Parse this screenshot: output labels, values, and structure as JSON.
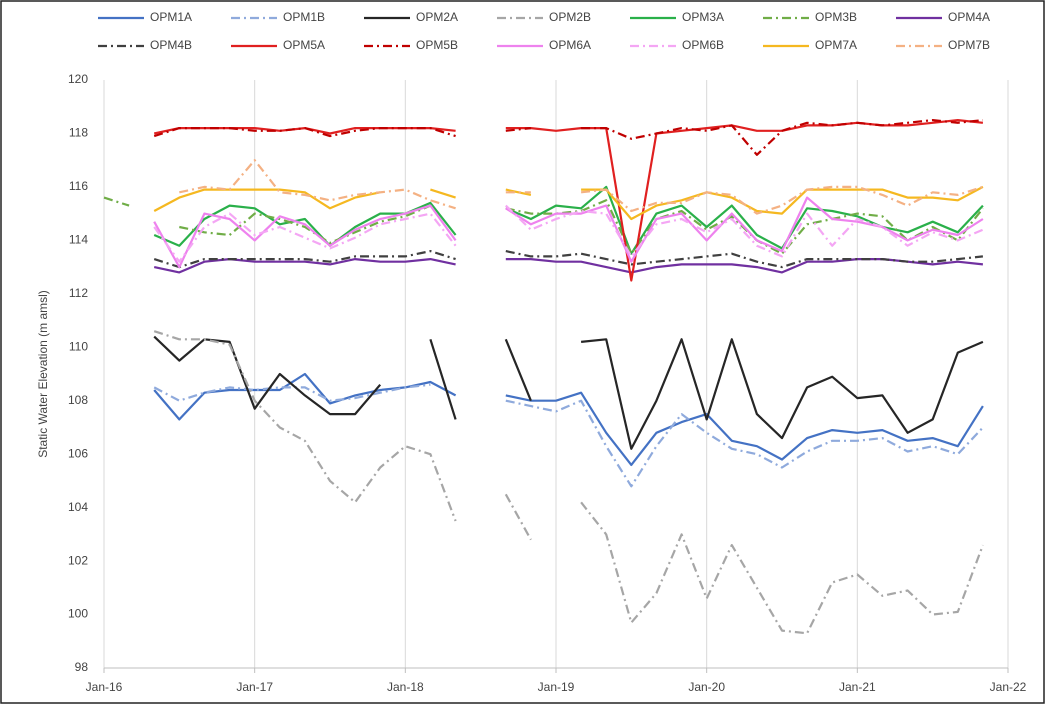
{
  "chart_data": {
    "type": "line",
    "y_label": "Static Water Elevation (m amsl)",
    "x": [
      "2016-01",
      "2016-03",
      "2016-05",
      "2016-07",
      "2016-09",
      "2016-11",
      "2017-01",
      "2017-03",
      "2017-05",
      "2017-07",
      "2017-09",
      "2017-11",
      "2018-01",
      "2018-03",
      "2018-05",
      "2018-07",
      "2018-09",
      "2018-11",
      "2019-01",
      "2019-03",
      "2019-05",
      "2019-07",
      "2019-09",
      "2019-11",
      "2020-01",
      "2020-03",
      "2020-05",
      "2020-07",
      "2020-09",
      "2020-11",
      "2021-01",
      "2021-03",
      "2021-05",
      "2021-07",
      "2021-09",
      "2021-11"
    ],
    "xlim": [
      "2016-01",
      "2022-01"
    ],
    "xticks": [
      {
        "value": "2016-01",
        "label": "Jan-16"
      },
      {
        "value": "2017-01",
        "label": "Jan-17"
      },
      {
        "value": "2018-01",
        "label": "Jan-18"
      },
      {
        "value": "2019-01",
        "label": "Jan-19"
      },
      {
        "value": "2020-01",
        "label": "Jan-20"
      },
      {
        "value": "2021-01",
        "label": "Jan-21"
      },
      {
        "value": "2022-01",
        "label": "Jan-22"
      }
    ],
    "ylim": [
      98,
      120
    ],
    "yticks": [
      98,
      100,
      102,
      104,
      106,
      108,
      110,
      112,
      114,
      116,
      118,
      120
    ],
    "xgrid": true,
    "legend": "top",
    "series": [
      {
        "name": "OPM1A",
        "color": "#4472c4",
        "style": "solid",
        "values": [
          null,
          null,
          108.4,
          107.3,
          108.3,
          108.4,
          108.4,
          108.4,
          109.0,
          107.9,
          108.2,
          108.4,
          108.5,
          108.7,
          108.2,
          null,
          108.2,
          108.0,
          108.0,
          108.3,
          106.8,
          105.6,
          106.8,
          107.2,
          107.5,
          106.5,
          106.3,
          105.8,
          106.6,
          106.9,
          106.8,
          106.9,
          106.5,
          106.6,
          106.3,
          107.8
        ]
      },
      {
        "name": "OPM1B",
        "color": "#8faadc",
        "style": "dashdot",
        "values": [
          108.5,
          null,
          108.5,
          108.0,
          108.3,
          108.5,
          108.4,
          108.5,
          108.5,
          108.0,
          108.1,
          108.3,
          108.5,
          108.6,
          null,
          null,
          108.0,
          107.8,
          107.6,
          108.0,
          106.3,
          104.8,
          106.3,
          107.5,
          106.8,
          106.2,
          106.0,
          105.5,
          106.1,
          106.5,
          106.5,
          106.6,
          106.1,
          106.3,
          106.0,
          107.0
        ]
      },
      {
        "name": "OPM2A",
        "color": "#262626",
        "style": "solid",
        "values": [
          110.7,
          null,
          110.4,
          109.5,
          110.3,
          110.2,
          107.7,
          109.0,
          108.2,
          107.5,
          107.5,
          108.6,
          null,
          110.3,
          107.3,
          null,
          110.3,
          108.0,
          null,
          110.2,
          110.3,
          106.2,
          108.0,
          110.3,
          107.3,
          110.3,
          107.5,
          106.6,
          108.5,
          108.9,
          108.1,
          108.2,
          106.8,
          107.3,
          109.8,
          110.2
        ]
      },
      {
        "name": "OPM2B",
        "color": "#a6a6a6",
        "style": "dashdot",
        "values": [
          110.8,
          null,
          110.6,
          110.3,
          110.3,
          110.1,
          108.0,
          107.0,
          106.5,
          105.0,
          104.2,
          105.5,
          106.3,
          106.0,
          103.5,
          null,
          104.5,
          102.8,
          null,
          104.2,
          103.0,
          99.7,
          100.8,
          103.0,
          100.6,
          102.6,
          101.0,
          99.4,
          99.3,
          101.2,
          101.5,
          100.7,
          100.9,
          100.0,
          100.1,
          102.6
        ]
      },
      {
        "name": "OPM3A",
        "color": "#2ab04a",
        "style": "solid",
        "values": [
          null,
          null,
          114.2,
          113.8,
          114.8,
          115.3,
          115.2,
          114.6,
          114.8,
          113.8,
          114.5,
          115.0,
          115.0,
          115.4,
          114.2,
          null,
          115.2,
          114.8,
          115.3,
          115.2,
          116.0,
          113.5,
          115.0,
          115.3,
          114.5,
          115.3,
          114.2,
          113.7,
          115.2,
          115.1,
          114.9,
          114.5,
          114.3,
          114.7,
          114.3,
          115.3
        ]
      },
      {
        "name": "OPM3B",
        "color": "#70ad47",
        "style": "dashdot",
        "values": [
          115.6,
          115.3,
          null,
          114.5,
          114.3,
          114.2,
          115.0,
          114.8,
          114.5,
          113.9,
          114.3,
          114.7,
          114.9,
          115.3,
          null,
          null,
          115.2,
          115.0,
          115.0,
          115.1,
          115.5,
          113.5,
          114.8,
          115.1,
          114.4,
          114.9,
          114.0,
          113.5,
          114.6,
          114.8,
          115.0,
          114.9,
          114.0,
          114.5,
          114.0,
          115.2
        ]
      },
      {
        "name": "OPM4A",
        "color": "#7030a0",
        "style": "solid",
        "values": [
          null,
          null,
          113.0,
          112.8,
          113.2,
          113.3,
          113.2,
          113.2,
          113.2,
          113.1,
          113.3,
          113.2,
          113.2,
          113.3,
          113.1,
          null,
          113.3,
          113.3,
          113.2,
          113.2,
          113.0,
          112.8,
          113.0,
          113.1,
          113.1,
          113.1,
          113.0,
          112.8,
          113.2,
          113.2,
          113.3,
          113.3,
          113.2,
          113.1,
          113.2,
          113.1
        ]
      },
      {
        "name": "OPM4B",
        "color": "#404040",
        "style": "dashdot",
        "values": [
          null,
          null,
          113.3,
          113.0,
          113.3,
          113.3,
          113.3,
          113.3,
          113.3,
          113.2,
          113.4,
          113.4,
          113.4,
          113.6,
          113.3,
          null,
          113.6,
          113.4,
          113.4,
          113.5,
          113.3,
          113.1,
          113.2,
          113.3,
          113.4,
          113.5,
          113.2,
          113.0,
          113.3,
          113.3,
          113.3,
          113.3,
          113.2,
          113.2,
          113.3,
          113.4
        ]
      },
      {
        "name": "OPM5A",
        "color": "#e02020",
        "style": "solid",
        "values": [
          null,
          null,
          118.0,
          118.2,
          118.2,
          118.2,
          118.2,
          118.1,
          118.2,
          118.0,
          118.2,
          118.2,
          118.2,
          118.2,
          118.1,
          null,
          118.2,
          118.2,
          118.1,
          118.2,
          118.2,
          112.5,
          118.0,
          118.1,
          118.2,
          118.3,
          118.1,
          118.1,
          118.3,
          118.3,
          118.4,
          118.3,
          118.3,
          118.4,
          118.5,
          118.4
        ]
      },
      {
        "name": "OPM5B",
        "color": "#c00000",
        "style": "dashdot",
        "values": [
          null,
          null,
          117.9,
          118.2,
          118.2,
          118.2,
          118.1,
          118.1,
          118.2,
          117.9,
          118.1,
          118.2,
          118.2,
          118.2,
          117.9,
          null,
          118.1,
          118.2,
          null,
          118.2,
          118.2,
          117.8,
          118.0,
          118.2,
          118.1,
          118.3,
          117.2,
          118.1,
          118.4,
          118.3,
          118.4,
          118.3,
          118.4,
          118.5,
          118.4,
          118.5
        ]
      },
      {
        "name": "OPM6A",
        "color": "#ee82ee",
        "style": "solid",
        "values": [
          null,
          null,
          114.7,
          113.0,
          115.0,
          114.8,
          114.0,
          114.9,
          114.6,
          113.8,
          114.4,
          114.8,
          115.0,
          115.3,
          114.0,
          null,
          115.2,
          114.6,
          115.0,
          115.0,
          115.3,
          113.2,
          114.8,
          115.0,
          114.0,
          115.0,
          114.0,
          113.6,
          115.6,
          114.8,
          114.7,
          114.5,
          114.0,
          114.4,
          114.2,
          114.8
        ]
      },
      {
        "name": "OPM6B",
        "color": "#f4a6f4",
        "style": "dashdot",
        "values": [
          null,
          null,
          114.5,
          113.2,
          114.5,
          115.0,
          114.2,
          114.5,
          114.1,
          113.7,
          114.1,
          114.6,
          114.8,
          115.0,
          113.8,
          null,
          115.3,
          114.4,
          114.8,
          115.1,
          115.0,
          113.4,
          114.6,
          114.8,
          114.3,
          114.8,
          113.8,
          113.4,
          115.0,
          113.8,
          114.8,
          114.5,
          113.8,
          114.3,
          114.0,
          114.4
        ]
      },
      {
        "name": "OPM7A",
        "color": "#f5b820",
        "style": "solid",
        "values": [
          null,
          null,
          115.1,
          115.6,
          115.9,
          115.9,
          115.9,
          115.9,
          115.8,
          115.2,
          115.6,
          115.8,
          null,
          115.9,
          115.6,
          null,
          115.9,
          115.7,
          null,
          115.9,
          115.9,
          114.8,
          115.3,
          115.5,
          115.8,
          115.6,
          115.1,
          115.0,
          115.9,
          115.9,
          115.9,
          115.9,
          115.6,
          115.6,
          115.5,
          116.0
        ]
      },
      {
        "name": "OPM7B",
        "color": "#f4b183",
        "style": "dashdot",
        "values": [
          null,
          null,
          null,
          115.8,
          116.0,
          115.9,
          117.0,
          115.8,
          115.7,
          115.5,
          115.7,
          115.8,
          115.9,
          115.5,
          115.2,
          null,
          115.8,
          115.8,
          null,
          115.8,
          115.9,
          115.1,
          115.4,
          115.4,
          115.8,
          115.7,
          115.0,
          115.3,
          115.9,
          116.0,
          116.0,
          115.7,
          115.3,
          115.8,
          115.7,
          116.0
        ]
      }
    ]
  }
}
